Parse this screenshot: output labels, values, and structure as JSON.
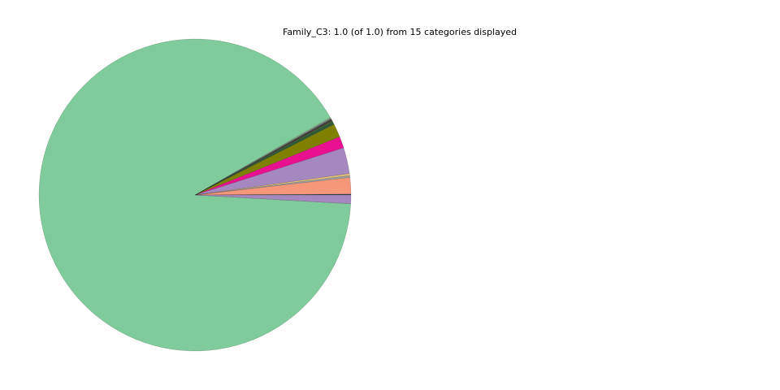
{
  "chart_data": {
    "type": "pie",
    "title": "Family_C3: 1.0 (of 1.0) from 15 categories displayed",
    "categories": [
      null,
      null,
      null,
      null,
      null,
      null,
      null,
      null,
      null,
      null,
      null,
      null,
      null,
      null,
      null
    ],
    "values": [
      0.001,
      0.017,
      0.002,
      0.002,
      0.027,
      0.012,
      0.014,
      0.003,
      0.001,
      0.001,
      0.001,
      0.001,
      0.001,
      0.908,
      0.009
    ],
    "colors": [
      "#2f4f4f",
      "#f7977a",
      "#a0a0a0",
      "#e6c47a",
      "#a688c0",
      "#ea1190",
      "#808000",
      "#2d5a3a",
      "#556b2f",
      "#333333",
      "#4a4a4a",
      "#777777",
      "#8fbc8f",
      "#80cb9c",
      "#a688c0"
    ]
  }
}
